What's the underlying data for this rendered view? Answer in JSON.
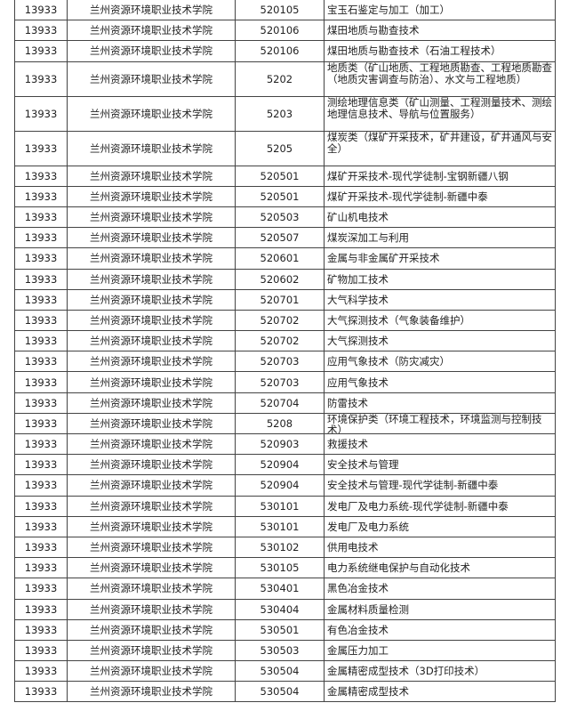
{
  "rows": [
    {
      "school_code": "13933",
      "school": "兰州资源环境职业技术学院",
      "major_code": "520105",
      "major": "宝玉石鉴定与加工（加工）"
    },
    {
      "school_code": "13933",
      "school": "兰州资源环境职业技术学院",
      "major_code": "520106",
      "major": "煤田地质与勘查技术"
    },
    {
      "school_code": "13933",
      "school": "兰州资源环境职业技术学院",
      "major_code": "520106",
      "major": "煤田地质与勘查技术（石油工程技术）"
    },
    {
      "school_code": "13933",
      "school": "兰州资源环境职业技术学院",
      "major_code": "5202",
      "major": "地质类（矿山地质、工程地质勘查、工程地质勘查（地质灾害调查与防治）、水文与工程地质）"
    },
    {
      "school_code": "13933",
      "school": "兰州资源环境职业技术学院",
      "major_code": "5203",
      "major": "测绘地理信息类（矿山测量、工程测量技术、测绘地理信息技术、导航与位置服务）"
    },
    {
      "school_code": "13933",
      "school": "兰州资源环境职业技术学院",
      "major_code": "5205",
      "major": "煤炭类（煤矿开采技术，矿井建设，矿井通风与安全）"
    },
    {
      "school_code": "13933",
      "school": "兰州资源环境职业技术学院",
      "major_code": "520501",
      "major": "煤矿开采技术-现代学徒制-宝钢新疆八钢"
    },
    {
      "school_code": "13933",
      "school": "兰州资源环境职业技术学院",
      "major_code": "520501",
      "major": "煤矿开采技术-现代学徒制-新疆中泰"
    },
    {
      "school_code": "13933",
      "school": "兰州资源环境职业技术学院",
      "major_code": "520503",
      "major": "矿山机电技术"
    },
    {
      "school_code": "13933",
      "school": "兰州资源环境职业技术学院",
      "major_code": "520507",
      "major": "煤炭深加工与利用"
    },
    {
      "school_code": "13933",
      "school": "兰州资源环境职业技术学院",
      "major_code": "520601",
      "major": "金属与非金属矿开采技术"
    },
    {
      "school_code": "13933",
      "school": "兰州资源环境职业技术学院",
      "major_code": "520602",
      "major": "矿物加工技术"
    },
    {
      "school_code": "13933",
      "school": "兰州资源环境职业技术学院",
      "major_code": "520701",
      "major": "大气科学技术"
    },
    {
      "school_code": "13933",
      "school": "兰州资源环境职业技术学院",
      "major_code": "520702",
      "major": "大气探测技术（气象装备维护）"
    },
    {
      "school_code": "13933",
      "school": "兰州资源环境职业技术学院",
      "major_code": "520702",
      "major": "大气探测技术"
    },
    {
      "school_code": "13933",
      "school": "兰州资源环境职业技术学院",
      "major_code": "520703",
      "major": "应用气象技术（防灾减灾）"
    },
    {
      "school_code": "13933",
      "school": "兰州资源环境职业技术学院",
      "major_code": "520703",
      "major": "应用气象技术"
    },
    {
      "school_code": "13933",
      "school": "兰州资源环境职业技术学院",
      "major_code": "520704",
      "major": "防雷技术"
    },
    {
      "school_code": "13933",
      "school": "兰州资源环境职业技术学院",
      "major_code": "5208",
      "major": "环境保护类（环境工程技术，环境监测与控制技术）"
    },
    {
      "school_code": "13933",
      "school": "兰州资源环境职业技术学院",
      "major_code": "520903",
      "major": "救援技术"
    },
    {
      "school_code": "13933",
      "school": "兰州资源环境职业技术学院",
      "major_code": "520904",
      "major": "安全技术与管理"
    },
    {
      "school_code": "13933",
      "school": "兰州资源环境职业技术学院",
      "major_code": "520904",
      "major": "安全技术与管理-现代学徒制-新疆中泰"
    },
    {
      "school_code": "13933",
      "school": "兰州资源环境职业技术学院",
      "major_code": "530101",
      "major": "发电厂及电力系统-现代学徒制-新疆中泰"
    },
    {
      "school_code": "13933",
      "school": "兰州资源环境职业技术学院",
      "major_code": "530101",
      "major": "发电厂及电力系统"
    },
    {
      "school_code": "13933",
      "school": "兰州资源环境职业技术学院",
      "major_code": "530102",
      "major": "供用电技术"
    },
    {
      "school_code": "13933",
      "school": "兰州资源环境职业技术学院",
      "major_code": "530105",
      "major": "电力系统继电保护与自动化技术"
    },
    {
      "school_code": "13933",
      "school": "兰州资源环境职业技术学院",
      "major_code": "530401",
      "major": "黑色冶金技术"
    },
    {
      "school_code": "13933",
      "school": "兰州资源环境职业技术学院",
      "major_code": "530404",
      "major": "金属材料质量检测"
    },
    {
      "school_code": "13933",
      "school": "兰州资源环境职业技术学院",
      "major_code": "530501",
      "major": "有色冶金技术"
    },
    {
      "school_code": "13933",
      "school": "兰州资源环境职业技术学院",
      "major_code": "530503",
      "major": "金属压力加工"
    },
    {
      "school_code": "13933",
      "school": "兰州资源环境职业技术学院",
      "major_code": "530504",
      "major": "金属精密成型技术（3D打印技术）"
    },
    {
      "school_code": "13933",
      "school": "兰州资源环境职业技术学院",
      "major_code": "530504",
      "major": "金属精密成型技术"
    }
  ]
}
